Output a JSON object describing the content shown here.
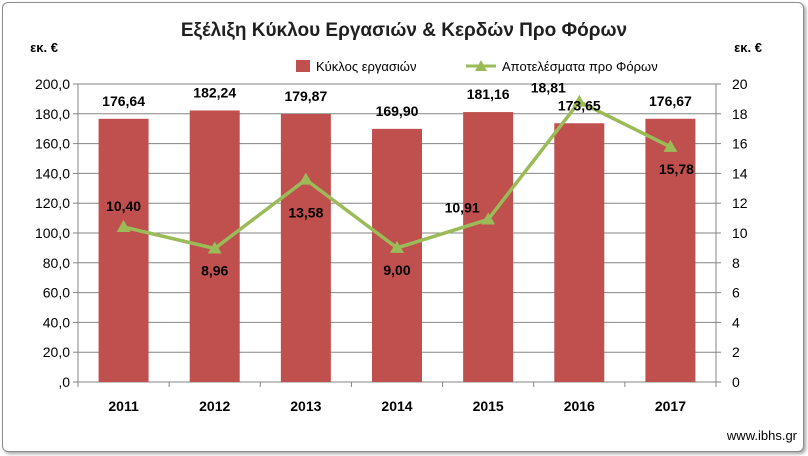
{
  "chart_data": {
    "type": "bar+line",
    "title": "Εξέλιξη Κύκλου Εργασιών & Κερδών Προ Φόρων",
    "y_left_label": "εκ. €",
    "y_right_label": "εκ. €",
    "categories": [
      "2011",
      "2012",
      "2013",
      "2014",
      "2015",
      "2016",
      "2017"
    ],
    "series": [
      {
        "name": "Κύκλος εργασιών",
        "type": "bar",
        "axis": "left",
        "color": "#c0504d",
        "values": [
          176.64,
          182.24,
          179.87,
          169.9,
          181.16,
          173.65,
          176.67
        ],
        "labels": [
          "176,64",
          "182,24",
          "179,87",
          "169,90",
          "181,16",
          "173,65",
          "176,67"
        ]
      },
      {
        "name": "Αποτελέσματα προ Φόρων",
        "type": "line",
        "axis": "right",
        "color": "#9bbb59",
        "marker": "triangle",
        "values": [
          10.4,
          8.96,
          13.58,
          9.0,
          10.91,
          18.81,
          15.78
        ],
        "labels": [
          "10,40",
          "8,96",
          "13,58",
          "9,00",
          "10,91",
          "18,81",
          "15,78"
        ]
      }
    ],
    "y_left": {
      "min": 0,
      "max": 200,
      "step": 20,
      "tick_labels": [
        ",0",
        "20,0",
        "40,0",
        "60,0",
        "80,0",
        "100,0",
        "120,0",
        "140,0",
        "160,0",
        "180,0",
        "200,0"
      ]
    },
    "y_right": {
      "min": 0,
      "max": 20,
      "step": 2,
      "tick_labels": [
        "0",
        "2",
        "4",
        "6",
        "8",
        "10",
        "12",
        "14",
        "16",
        "18",
        "20"
      ]
    },
    "grid": true,
    "legend": "top-right",
    "watermark": "www.ibhs.gr"
  }
}
